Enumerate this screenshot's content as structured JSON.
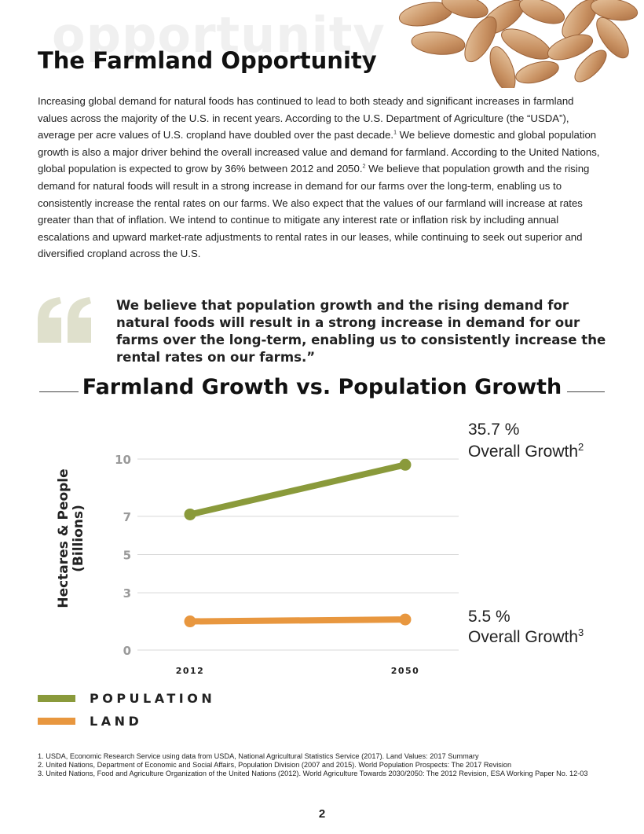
{
  "header": {
    "background_word": "opportunity",
    "title": "The Farmland Opportunity"
  },
  "body": {
    "p1": "Increasing global demand for natural foods has continued to lead to both steady and significant increases in farmland values across the majority of the U.S. in recent years. According to the U.S. Department of Agriculture (the “USDA”), average per acre values of U.S. cropland have doubled over the past decade.",
    "fn1": "1",
    "p2": " We believe domestic and global population growth is also a major driver behind the overall increased value and demand for farmland. According to the United Nations, global population is expected to grow by 36% between 2012 and 2050.",
    "fn2": "2",
    "p3": " We believe that population growth and the rising demand for natural foods will result in a strong increase in demand for our farms over the long-term, enabling us to consistently increase the rental rates on our farms. We also expect that the values of our farmland will increase at rates greater than that of inflation. We intend to continue to mitigate any interest rate or inflation risk by including annual escalations and upward market-rate adjustments to rental rates in our leases, while continuing to seek out superior and diversified cropland across the U.S."
  },
  "quote": {
    "text": "We believe that population growth and the rising demand for natural foods will result in a strong increase in demand for our farms over the long-term, enabling us to consistently increase the rental rates on our farms.”",
    "mark_color": "#dfe0cc"
  },
  "chart_data": {
    "type": "line",
    "title": "Farmland Growth vs. Population Growth",
    "ylabel_line1": "Hectares & People",
    "ylabel_line2": "(Billions)",
    "x": [
      "2012",
      "2050"
    ],
    "y_ticks": [
      "0",
      "3",
      "5",
      "7",
      "10"
    ],
    "ylim": [
      0,
      10
    ],
    "grid": true,
    "series": [
      {
        "name": "POPULATION",
        "values": [
          7.1,
          9.7
        ],
        "color": "#8a9a3b",
        "annotation_value": "35.7 %",
        "annotation_label": "Overall Growth",
        "annotation_sup": "2"
      },
      {
        "name": "LAND",
        "values": [
          1.5,
          1.6
        ],
        "color": "#e8973f",
        "annotation_value": "5.5 %",
        "annotation_label": "Overall Growth",
        "annotation_sup": "3"
      }
    ]
  },
  "footnotes": [
    "1. USDA, Economic Research Service using data from USDA, National Agricultural Statistics Service (2017). Land Values: 2017 Summary",
    "2. United Nations, Department of Economic and Social Affairs, Population Division (2007 and 2015). World Population Prospects: The 2017 Revision",
    "3. United Nations, Food and Agriculture Organization of the United Nations (2012). World Agriculture Towards 2030/2050: The 2012 Revision, ESA Working Paper No. 12-03"
  ],
  "page_number": "2"
}
